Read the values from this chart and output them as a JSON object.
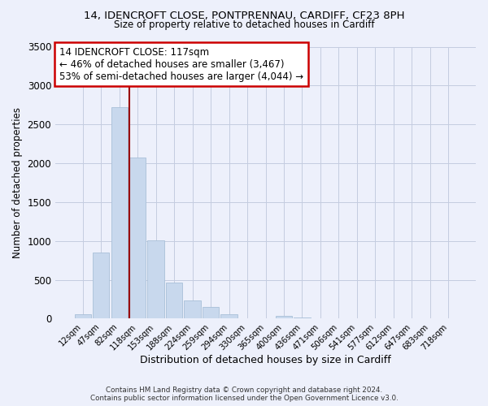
{
  "title1": "14, IDENCROFT CLOSE, PONTPRENNAU, CARDIFF, CF23 8PH",
  "title2": "Size of property relative to detached houses in Cardiff",
  "xlabel": "Distribution of detached houses by size in Cardiff",
  "ylabel": "Number of detached properties",
  "bar_labels": [
    "12sqm",
    "47sqm",
    "82sqm",
    "118sqm",
    "153sqm",
    "188sqm",
    "224sqm",
    "259sqm",
    "294sqm",
    "330sqm",
    "365sqm",
    "400sqm",
    "436sqm",
    "471sqm",
    "506sqm",
    "541sqm",
    "577sqm",
    "612sqm",
    "647sqm",
    "683sqm",
    "718sqm"
  ],
  "bar_values": [
    55,
    850,
    2725,
    2075,
    1010,
    460,
    235,
    145,
    55,
    0,
    0,
    35,
    15,
    0,
    0,
    0,
    0,
    0,
    0,
    0,
    0
  ],
  "bar_color": "#c8d8ed",
  "bar_edgecolor": "#a8c0d8",
  "vline_color": "#990000",
  "ylim": [
    0,
    3500
  ],
  "yticks": [
    0,
    500,
    1000,
    1500,
    2000,
    2500,
    3000,
    3500
  ],
  "annotation_title": "14 IDENCROFT CLOSE: 117sqm",
  "annotation_line1": "← 46% of detached houses are smaller (3,467)",
  "annotation_line2": "53% of semi-detached houses are larger (4,044) →",
  "annotation_box_color": "#ffffff",
  "annotation_box_edgecolor": "#cc0000",
  "footer1": "Contains HM Land Registry data © Crown copyright and database right 2024.",
  "footer2": "Contains public sector information licensed under the Open Government Licence v3.0.",
  "background_color": "#edf0fb",
  "plot_background": "#edf0fb"
}
